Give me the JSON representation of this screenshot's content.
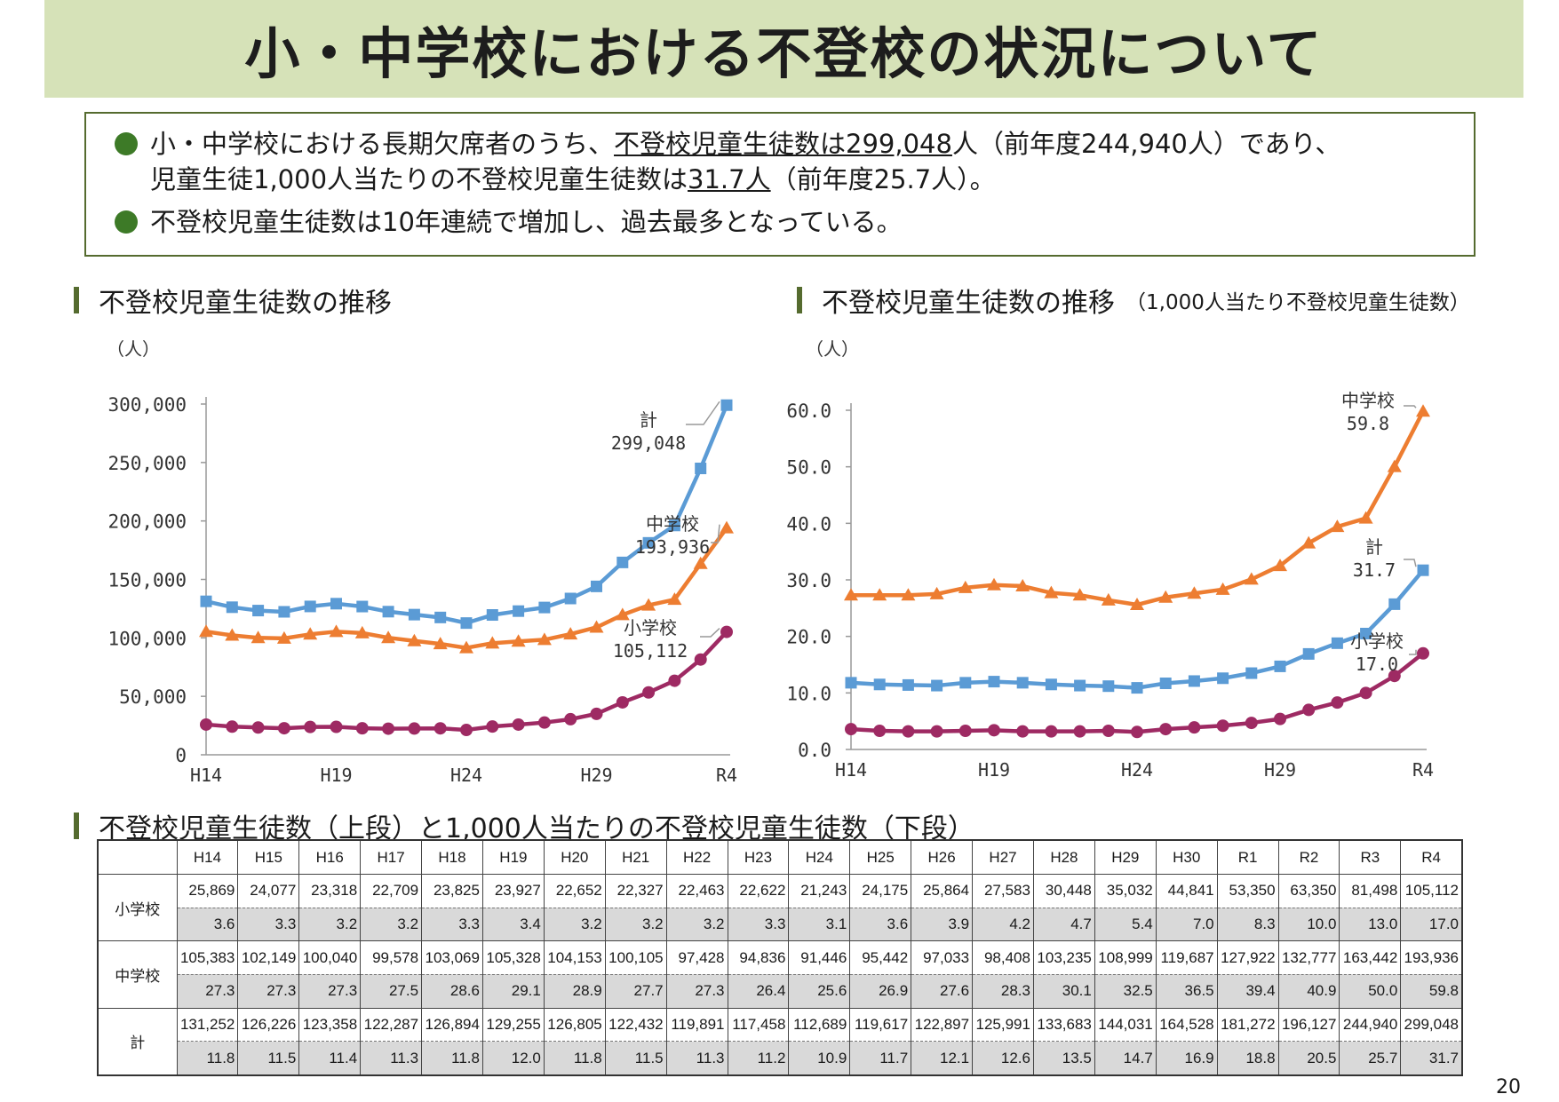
{
  "page": {
    "title": "小・中学校における不登校の状況について",
    "page_number": "20"
  },
  "summary": {
    "bullet1_line1_pre": "小・中学校における長期欠席者のうち、",
    "bullet1_line1_underline": "不登校児童生徒数は299,048",
    "bullet1_line1_post": "人（前年度244,940人）であり、",
    "bullet1_line2_pre": "児童生徒1,000人当たりの不登校児童生徒数は",
    "bullet1_line2_underline": "31.7人",
    "bullet1_line2_post": "（前年度25.7人）。",
    "bullet2": "不登校児童生徒数は10年連続で増加し、過去最多となっている。"
  },
  "sections": {
    "chart1_heading": "不登校児童生徒数の推移",
    "chart2_heading": "不登校児童生徒数の推移",
    "chart2_note": "（1,000人当たり不登校児童生徒数）",
    "table_heading": "不登校児童生徒数（上段）と1,000人当たりの不登校児童生徒数（下段）"
  },
  "colors": {
    "total": "#5b9bd5",
    "junior": "#ed7d31",
    "elementary": "#9e2a63",
    "title_bg": "#d6e2b8",
    "accent": "#556b2f"
  },
  "chart_data": [
    {
      "type": "line",
      "title": "",
      "unit": "（人）",
      "categories": [
        "H14",
        "H15",
        "H16",
        "H17",
        "H18",
        "H19",
        "H20",
        "H21",
        "H22",
        "H23",
        "H24",
        "H25",
        "H26",
        "H27",
        "H28",
        "H29",
        "H30",
        "R1",
        "R2",
        "R3",
        "R4"
      ],
      "x_tick_labels": [
        "H14",
        "H19",
        "H24",
        "H29",
        "R4"
      ],
      "y_ticks": [
        "300,000",
        "250,000",
        "200,000",
        "150,000",
        "100,000",
        "50,000",
        "0"
      ],
      "ylim": [
        0,
        300000
      ],
      "series": [
        {
          "name": "計",
          "marker": "square",
          "color": "#5b9bd5",
          "values": [
            131252,
            126226,
            123358,
            122287,
            126894,
            129255,
            126805,
            122432,
            119891,
            117458,
            112689,
            119617,
            122897,
            125991,
            133683,
            144031,
            164528,
            181272,
            196127,
            244940,
            299048
          ]
        },
        {
          "name": "中学校",
          "marker": "triangle",
          "color": "#ed7d31",
          "values": [
            105383,
            102149,
            100040,
            99578,
            103069,
            105328,
            104153,
            100105,
            97428,
            94836,
            91446,
            95442,
            97033,
            98408,
            103235,
            108999,
            119687,
            127922,
            132777,
            163442,
            193936
          ]
        },
        {
          "name": "小学校",
          "marker": "circle",
          "color": "#9e2a63",
          "values": [
            25869,
            24077,
            23318,
            22709,
            23825,
            23927,
            22652,
            22327,
            22463,
            22622,
            21243,
            24175,
            25864,
            27583,
            30448,
            35032,
            44841,
            53350,
            63350,
            81498,
            105112
          ]
        }
      ],
      "annotations": [
        {
          "name": "計",
          "value": "299,048"
        },
        {
          "name": "中学校",
          "value": "193,936"
        },
        {
          "name": "小学校",
          "value": "105,112"
        }
      ]
    },
    {
      "type": "line",
      "title": "",
      "unit": "（人）",
      "categories": [
        "H14",
        "H15",
        "H16",
        "H17",
        "H18",
        "H19",
        "H20",
        "H21",
        "H22",
        "H23",
        "H24",
        "H25",
        "H26",
        "H27",
        "H28",
        "H29",
        "H30",
        "R1",
        "R2",
        "R3",
        "R4"
      ],
      "x_tick_labels": [
        "H14",
        "H19",
        "H24",
        "H29",
        "R4"
      ],
      "y_ticks": [
        "60.0",
        "50.0",
        "40.0",
        "30.0",
        "20.0",
        "10.0",
        "0.0"
      ],
      "ylim": [
        0,
        60
      ],
      "series": [
        {
          "name": "中学校",
          "marker": "triangle",
          "color": "#ed7d31",
          "values": [
            27.3,
            27.3,
            27.3,
            27.5,
            28.6,
            29.1,
            28.9,
            27.7,
            27.3,
            26.4,
            25.6,
            26.9,
            27.6,
            28.3,
            30.1,
            32.5,
            36.5,
            39.4,
            40.9,
            50.0,
            59.8
          ]
        },
        {
          "name": "計",
          "marker": "square",
          "color": "#5b9bd5",
          "values": [
            11.8,
            11.5,
            11.4,
            11.3,
            11.8,
            12.0,
            11.8,
            11.5,
            11.3,
            11.2,
            10.9,
            11.7,
            12.1,
            12.6,
            13.5,
            14.7,
            16.9,
            18.8,
            20.5,
            25.7,
            31.7
          ]
        },
        {
          "name": "小学校",
          "marker": "circle",
          "color": "#9e2a63",
          "values": [
            3.6,
            3.3,
            3.2,
            3.2,
            3.3,
            3.4,
            3.2,
            3.2,
            3.2,
            3.3,
            3.1,
            3.6,
            3.9,
            4.2,
            4.7,
            5.4,
            7.0,
            8.3,
            10.0,
            13.0,
            17.0
          ]
        }
      ],
      "annotations": [
        {
          "name": "中学校",
          "value": "59.8"
        },
        {
          "name": "計",
          "value": "31.7"
        },
        {
          "name": "小学校",
          "value": "17.0"
        }
      ]
    }
  ],
  "table": {
    "headers": [
      "H14",
      "H15",
      "H16",
      "H17",
      "H18",
      "H19",
      "H20",
      "H21",
      "H22",
      "H23",
      "H24",
      "H25",
      "H26",
      "H27",
      "H28",
      "H29",
      "H30",
      "R1",
      "R2",
      "R3",
      "R4"
    ],
    "rows": [
      {
        "label": "小学校",
        "counts": [
          "25,869",
          "24,077",
          "23,318",
          "22,709",
          "23,825",
          "23,927",
          "22,652",
          "22,327",
          "22,463",
          "22,622",
          "21,243",
          "24,175",
          "25,864",
          "27,583",
          "30,448",
          "35,032",
          "44,841",
          "53,350",
          "63,350",
          "81,498",
          "105,112"
        ],
        "rates": [
          "3.6",
          "3.3",
          "3.2",
          "3.2",
          "3.3",
          "3.4",
          "3.2",
          "3.2",
          "3.2",
          "3.3",
          "3.1",
          "3.6",
          "3.9",
          "4.2",
          "4.7",
          "5.4",
          "7.0",
          "8.3",
          "10.0",
          "13.0",
          "17.0"
        ]
      },
      {
        "label": "中学校",
        "counts": [
          "105,383",
          "102,149",
          "100,040",
          "99,578",
          "103,069",
          "105,328",
          "104,153",
          "100,105",
          "97,428",
          "94,836",
          "91,446",
          "95,442",
          "97,033",
          "98,408",
          "103,235",
          "108,999",
          "119,687",
          "127,922",
          "132,777",
          "163,442",
          "193,936"
        ],
        "rates": [
          "27.3",
          "27.3",
          "27.3",
          "27.5",
          "28.6",
          "29.1",
          "28.9",
          "27.7",
          "27.3",
          "26.4",
          "25.6",
          "26.9",
          "27.6",
          "28.3",
          "30.1",
          "32.5",
          "36.5",
          "39.4",
          "40.9",
          "50.0",
          "59.8"
        ]
      },
      {
        "label": "計",
        "counts": [
          "131,252",
          "126,226",
          "123,358",
          "122,287",
          "126,894",
          "129,255",
          "126,805",
          "122,432",
          "119,891",
          "117,458",
          "112,689",
          "119,617",
          "122,897",
          "125,991",
          "133,683",
          "144,031",
          "164,528",
          "181,272",
          "196,127",
          "244,940",
          "299,048"
        ],
        "rates": [
          "11.8",
          "11.5",
          "11.4",
          "11.3",
          "11.8",
          "12.0",
          "11.8",
          "11.5",
          "11.3",
          "11.2",
          "10.9",
          "11.7",
          "12.1",
          "12.6",
          "13.5",
          "14.7",
          "16.9",
          "18.8",
          "20.5",
          "25.7",
          "31.7"
        ]
      }
    ]
  }
}
